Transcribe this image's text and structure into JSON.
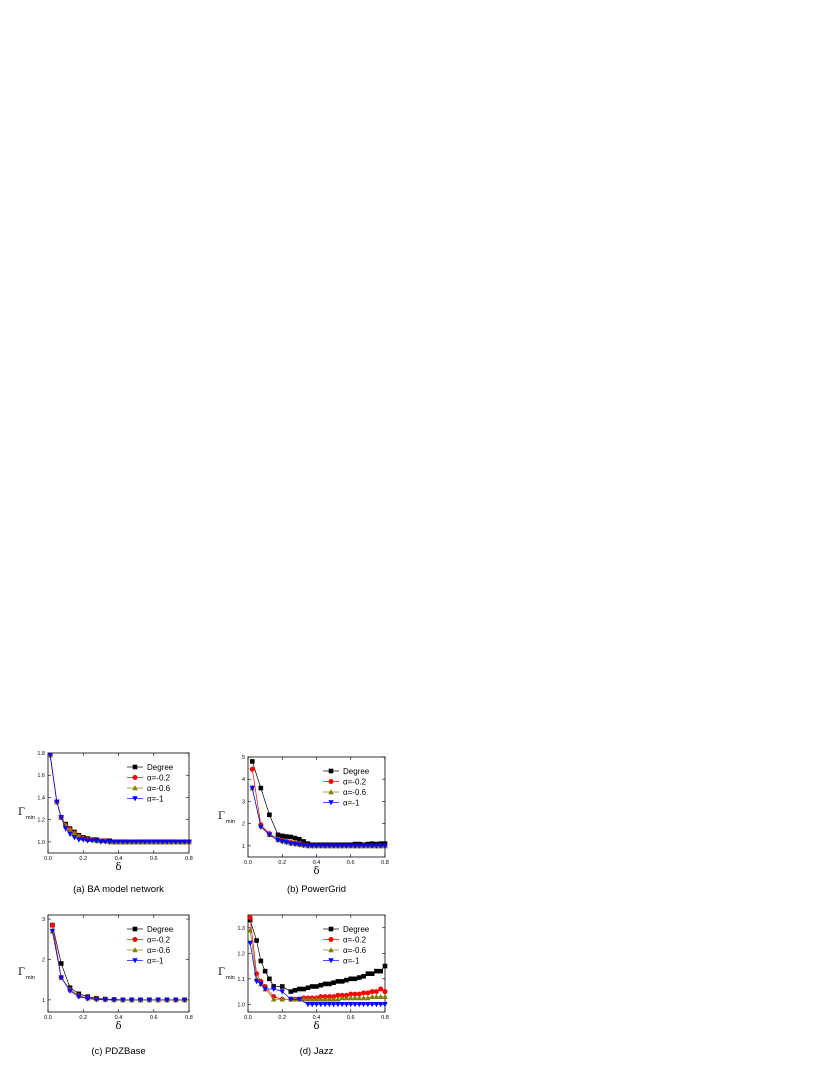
{
  "styles": {
    "Degree": {
      "color": "#000000",
      "marker": "square"
    },
    "a02": {
      "color": "#ff0000",
      "marker": "circle"
    },
    "a06": {
      "color": "#808000",
      "marker": "triangle-up"
    },
    "a1": {
      "color": "#0000ff",
      "marker": "triangle-down"
    }
  },
  "chart_data": [
    {
      "type": "line",
      "caption": "(a) BA model network",
      "xlabel": "δ",
      "ylabel": "Γ",
      "ylabel_sub": "min",
      "xlim": [
        0,
        0.8
      ],
      "ylim": [
        0.9,
        1.8
      ],
      "xticks": [
        "0.0",
        "0.2",
        "0.4",
        "0.6",
        "0.8"
      ],
      "yticks": [
        "1.0",
        "1.2",
        "1.4",
        "1.6",
        "1.8"
      ],
      "legend_position": "top-right",
      "x": [
        0.0125,
        0.05,
        0.075,
        0.1,
        0.125,
        0.15,
        0.175,
        0.2,
        0.225,
        0.25,
        0.275,
        0.3,
        0.325,
        0.35,
        0.375,
        0.4,
        0.425,
        0.45,
        0.475,
        0.5,
        0.525,
        0.55,
        0.575,
        0.6,
        0.625,
        0.65,
        0.675,
        0.7,
        0.725,
        0.75,
        0.775,
        0.8
      ],
      "series": [
        {
          "name": "Degree",
          "style": "Degree",
          "values": [
            1.78,
            1.36,
            1.22,
            1.16,
            1.12,
            1.09,
            1.06,
            1.04,
            1.03,
            1.02,
            1.02,
            1.01,
            1.01,
            1.01,
            1.0,
            1.0,
            1.0,
            1.0,
            1.0,
            1.0,
            1.0,
            1.0,
            1.0,
            1.0,
            1.0,
            1.0,
            1.0,
            1.0,
            1.0,
            1.0,
            1.0,
            1.0
          ]
        },
        {
          "name": "α=-0.2",
          "style": "a02",
          "values": [
            1.78,
            1.36,
            1.22,
            1.15,
            1.11,
            1.08,
            1.05,
            1.03,
            1.02,
            1.02,
            1.01,
            1.01,
            1.01,
            1.0,
            1.0,
            1.0,
            1.0,
            1.0,
            1.0,
            1.0,
            1.0,
            1.0,
            1.0,
            1.0,
            1.0,
            1.0,
            1.0,
            1.0,
            1.0,
            1.0,
            1.0,
            1.0
          ]
        },
        {
          "name": "α=-0.6",
          "style": "a06",
          "values": [
            1.78,
            1.36,
            1.22,
            1.15,
            1.11,
            1.08,
            1.05,
            1.03,
            1.02,
            1.02,
            1.01,
            1.01,
            1.01,
            1.0,
            1.0,
            1.0,
            1.0,
            1.0,
            1.0,
            1.0,
            1.0,
            1.0,
            1.0,
            1.0,
            1.0,
            1.0,
            1.0,
            1.0,
            1.0,
            1.0,
            1.0,
            1.0
          ]
        },
        {
          "name": "α=-1",
          "style": "a1",
          "values": [
            1.78,
            1.36,
            1.22,
            1.12,
            1.07,
            1.04,
            1.02,
            1.02,
            1.01,
            1.01,
            1.01,
            1.0,
            1.0,
            1.0,
            1.0,
            1.0,
            1.0,
            1.0,
            1.0,
            1.0,
            1.0,
            1.0,
            1.0,
            1.0,
            1.0,
            1.0,
            1.0,
            1.0,
            1.0,
            1.0,
            1.0,
            1.0
          ]
        }
      ]
    },
    {
      "type": "line",
      "caption": "(b) PowerGrid",
      "xlabel": "δ",
      "ylabel": "Γ",
      "ylabel_sub": "min",
      "xlim": [
        0,
        0.8
      ],
      "ylim": [
        0.5,
        5.0
      ],
      "xticks": [
        "0.0",
        "0.2",
        "0.4",
        "0.6",
        "0.8"
      ],
      "yticks": [
        "1",
        "2",
        "3",
        "4",
        "5"
      ],
      "legend_position": "top-right",
      "series": [
        {
          "name": "Degree",
          "style": "Degree",
          "x": [
            0.025,
            0.075,
            0.125,
            0.175,
            0.2,
            0.225,
            0.25,
            0.275,
            0.3,
            0.325,
            0.35,
            0.375,
            0.4,
            0.425,
            0.45,
            0.475,
            0.5,
            0.525,
            0.55,
            0.575,
            0.6,
            0.625,
            0.65,
            0.675,
            0.7,
            0.725,
            0.75,
            0.775,
            0.8
          ],
          "values": [
            4.8,
            3.6,
            2.4,
            1.5,
            1.45,
            1.42,
            1.4,
            1.35,
            1.3,
            1.2,
            1.1,
            1.05,
            1.05,
            1.05,
            1.05,
            1.05,
            1.05,
            1.05,
            1.05,
            1.05,
            1.05,
            1.08,
            1.08,
            1.05,
            1.08,
            1.1,
            1.08,
            1.1,
            1.1
          ]
        },
        {
          "name": "α=-0.2",
          "style": "a02",
          "x": [
            0.025,
            0.075,
            0.125,
            0.175,
            0.2,
            0.225,
            0.25,
            0.275,
            0.3,
            0.325,
            0.35,
            0.375,
            0.4,
            0.425,
            0.45,
            0.475,
            0.5,
            0.525,
            0.55,
            0.575,
            0.6,
            0.625,
            0.65,
            0.675,
            0.7,
            0.725,
            0.75,
            0.775,
            0.8
          ],
          "values": [
            4.45,
            1.95,
            1.55,
            1.3,
            1.25,
            1.2,
            1.15,
            1.12,
            1.08,
            1.05,
            1.02,
            1.0,
            1.0,
            1.0,
            1.0,
            1.0,
            1.0,
            1.0,
            1.0,
            1.0,
            1.0,
            1.0,
            1.0,
            1.0,
            1.0,
            1.0,
            1.0,
            1.0,
            1.0
          ]
        },
        {
          "name": "α=-0.6",
          "style": "a06",
          "x": [
            0.025,
            0.075,
            0.125,
            0.175,
            0.2,
            0.225,
            0.25,
            0.275,
            0.3,
            0.325,
            0.35,
            0.375,
            0.4,
            0.425,
            0.45,
            0.475,
            0.5,
            0.525,
            0.55,
            0.575,
            0.6,
            0.625,
            0.65,
            0.675,
            0.7,
            0.725,
            0.75,
            0.775,
            0.8
          ],
          "values": [
            3.6,
            1.9,
            1.5,
            1.28,
            1.22,
            1.18,
            1.12,
            1.1,
            1.06,
            1.03,
            1.0,
            1.0,
            1.0,
            1.0,
            1.0,
            1.0,
            1.0,
            1.0,
            1.0,
            1.0,
            1.0,
            1.0,
            1.0,
            1.0,
            1.0,
            1.0,
            1.0,
            1.0,
            1.0
          ]
        },
        {
          "name": "α=-1",
          "style": "a1",
          "x": [
            0.025,
            0.075,
            0.125,
            0.175,
            0.2,
            0.225,
            0.25,
            0.275,
            0.3,
            0.325,
            0.35,
            0.375,
            0.4,
            0.425,
            0.45,
            0.475,
            0.5,
            0.525,
            0.55,
            0.575,
            0.6,
            0.625,
            0.65,
            0.675,
            0.7,
            0.725,
            0.75,
            0.775,
            0.8
          ],
          "values": [
            3.6,
            1.85,
            1.5,
            1.25,
            1.2,
            1.15,
            1.1,
            1.08,
            1.05,
            1.02,
            1.0,
            1.0,
            1.0,
            1.0,
            1.0,
            1.0,
            1.0,
            1.0,
            1.0,
            1.0,
            1.0,
            1.0,
            1.0,
            1.0,
            1.0,
            1.0,
            1.0,
            1.0,
            1.0
          ]
        }
      ]
    },
    {
      "type": "line",
      "caption": "(c) PDZBase",
      "xlabel": "δ",
      "ylabel": "Γ",
      "ylabel_sub": "min",
      "xlim": [
        0,
        0.8
      ],
      "ylim": [
        0.7,
        3.1
      ],
      "xticks": [
        "0.0",
        "0.2",
        "0.4",
        "0.6",
        "0.8"
      ],
      "yticks": [
        "1",
        "2",
        "3"
      ],
      "legend_position": "top-right",
      "series": [
        {
          "name": "Degree",
          "style": "Degree",
          "x": [
            0.025,
            0.075,
            0.125,
            0.175,
            0.225,
            0.275,
            0.325,
            0.375,
            0.425,
            0.475,
            0.525,
            0.575,
            0.625,
            0.675,
            0.725,
            0.775
          ],
          "values": [
            2.85,
            1.9,
            1.3,
            1.15,
            1.08,
            1.04,
            1.02,
            1.01,
            1.0,
            1.0,
            1.0,
            1.0,
            1.0,
            1.0,
            1.0,
            1.0
          ]
        },
        {
          "name": "α=-0.2",
          "style": "a02",
          "x": [
            0.025,
            0.075,
            0.125,
            0.175,
            0.225,
            0.275,
            0.325,
            0.375,
            0.425,
            0.475,
            0.525,
            0.575,
            0.625,
            0.675,
            0.725,
            0.775
          ],
          "values": [
            2.85,
            1.55,
            1.25,
            1.1,
            1.05,
            1.03,
            1.01,
            1.0,
            1.0,
            1.0,
            1.0,
            1.0,
            1.0,
            1.0,
            1.0,
            1.0
          ]
        },
        {
          "name": "α=-0.6",
          "style": "a06",
          "x": [
            0.025,
            0.075,
            0.125,
            0.175,
            0.225,
            0.275,
            0.325,
            0.375,
            0.425,
            0.475,
            0.525,
            0.575,
            0.625,
            0.675,
            0.725,
            0.775
          ],
          "values": [
            2.7,
            1.55,
            1.25,
            1.1,
            1.04,
            1.02,
            1.01,
            1.0,
            1.0,
            1.0,
            1.0,
            1.0,
            1.0,
            1.0,
            1.0,
            1.0
          ]
        },
        {
          "name": "α=-1",
          "style": "a1",
          "x": [
            0.025,
            0.075,
            0.125,
            0.175,
            0.225,
            0.275,
            0.325,
            0.375,
            0.425,
            0.475,
            0.525,
            0.575,
            0.625,
            0.675,
            0.725,
            0.775
          ],
          "values": [
            2.7,
            1.55,
            1.22,
            1.08,
            1.03,
            1.01,
            1.0,
            1.0,
            1.0,
            1.0,
            1.0,
            1.0,
            1.0,
            1.0,
            1.0,
            1.0
          ]
        }
      ]
    },
    {
      "type": "line",
      "caption": "(d) Jazz",
      "xlabel": "δ",
      "ylabel": "Γ",
      "ylabel_sub": "min",
      "xlim": [
        0,
        0.8
      ],
      "ylim": [
        0.97,
        1.35
      ],
      "xticks": [
        "0.0",
        "0.2",
        "0.4",
        "0.6",
        "0.8"
      ],
      "yticks": [
        "1.0",
        "1.1",
        "1.2",
        "1.3"
      ],
      "legend_position": "top-right",
      "series": [
        {
          "name": "Degree",
          "style": "Degree",
          "x": [
            0.0125,
            0.05,
            0.075,
            0.1,
            0.125,
            0.15,
            0.2,
            0.25,
            0.275,
            0.3,
            0.325,
            0.35,
            0.375,
            0.4,
            0.425,
            0.45,
            0.475,
            0.5,
            0.525,
            0.55,
            0.575,
            0.6,
            0.625,
            0.65,
            0.675,
            0.7,
            0.725,
            0.75,
            0.775,
            0.8
          ],
          "values": [
            1.33,
            1.25,
            1.17,
            1.13,
            1.1,
            1.07,
            1.07,
            1.05,
            1.055,
            1.06,
            1.06,
            1.065,
            1.07,
            1.07,
            1.075,
            1.08,
            1.08,
            1.085,
            1.09,
            1.09,
            1.095,
            1.1,
            1.1,
            1.105,
            1.11,
            1.12,
            1.12,
            1.13,
            1.13,
            1.15
          ]
        },
        {
          "name": "α=-0.2",
          "style": "a02",
          "x": [
            0.0125,
            0.05,
            0.075,
            0.1,
            0.15,
            0.2,
            0.25,
            0.275,
            0.3,
            0.325,
            0.35,
            0.375,
            0.4,
            0.425,
            0.45,
            0.475,
            0.5,
            0.525,
            0.55,
            0.575,
            0.6,
            0.625,
            0.65,
            0.675,
            0.7,
            0.725,
            0.75,
            0.775,
            0.8
          ],
          "values": [
            1.34,
            1.12,
            1.09,
            1.07,
            1.03,
            1.02,
            1.02,
            1.02,
            1.02,
            1.025,
            1.025,
            1.025,
            1.025,
            1.03,
            1.03,
            1.03,
            1.03,
            1.035,
            1.035,
            1.035,
            1.04,
            1.04,
            1.04,
            1.045,
            1.045,
            1.05,
            1.05,
            1.06,
            1.05
          ]
        },
        {
          "name": "α=-0.6",
          "style": "a06",
          "x": [
            0.0125,
            0.05,
            0.075,
            0.1,
            0.15,
            0.2,
            0.25,
            0.275,
            0.3,
            0.325,
            0.35,
            0.375,
            0.4,
            0.425,
            0.45,
            0.475,
            0.5,
            0.525,
            0.55,
            0.575,
            0.6,
            0.625,
            0.65,
            0.675,
            0.7,
            0.725,
            0.75,
            0.775,
            0.8
          ],
          "values": [
            1.29,
            1.1,
            1.08,
            1.06,
            1.02,
            1.02,
            1.02,
            1.02,
            1.02,
            1.02,
            1.02,
            1.02,
            1.02,
            1.02,
            1.02,
            1.02,
            1.02,
            1.02,
            1.025,
            1.025,
            1.025,
            1.025,
            1.025,
            1.025,
            1.025,
            1.03,
            1.03,
            1.03,
            1.03
          ]
        },
        {
          "name": "α=-1",
          "style": "a1",
          "x": [
            0.0125,
            0.05,
            0.075,
            0.1,
            0.15,
            0.2,
            0.25,
            0.3,
            0.35,
            0.375,
            0.4,
            0.425,
            0.45,
            0.475,
            0.5,
            0.525,
            0.55,
            0.575,
            0.6,
            0.625,
            0.65,
            0.675,
            0.7,
            0.725,
            0.75,
            0.775,
            0.8
          ],
          "values": [
            1.24,
            1.09,
            1.08,
            1.06,
            1.06,
            1.05,
            1.02,
            1.02,
            1.0,
            1.0,
            1.0,
            1.0,
            1.0,
            1.0,
            1.0,
            1.0,
            1.0,
            1.0,
            1.0,
            1.0,
            1.0,
            1.0,
            1.0,
            1.0,
            1.0,
            1.0,
            1.0
          ]
        }
      ]
    }
  ]
}
